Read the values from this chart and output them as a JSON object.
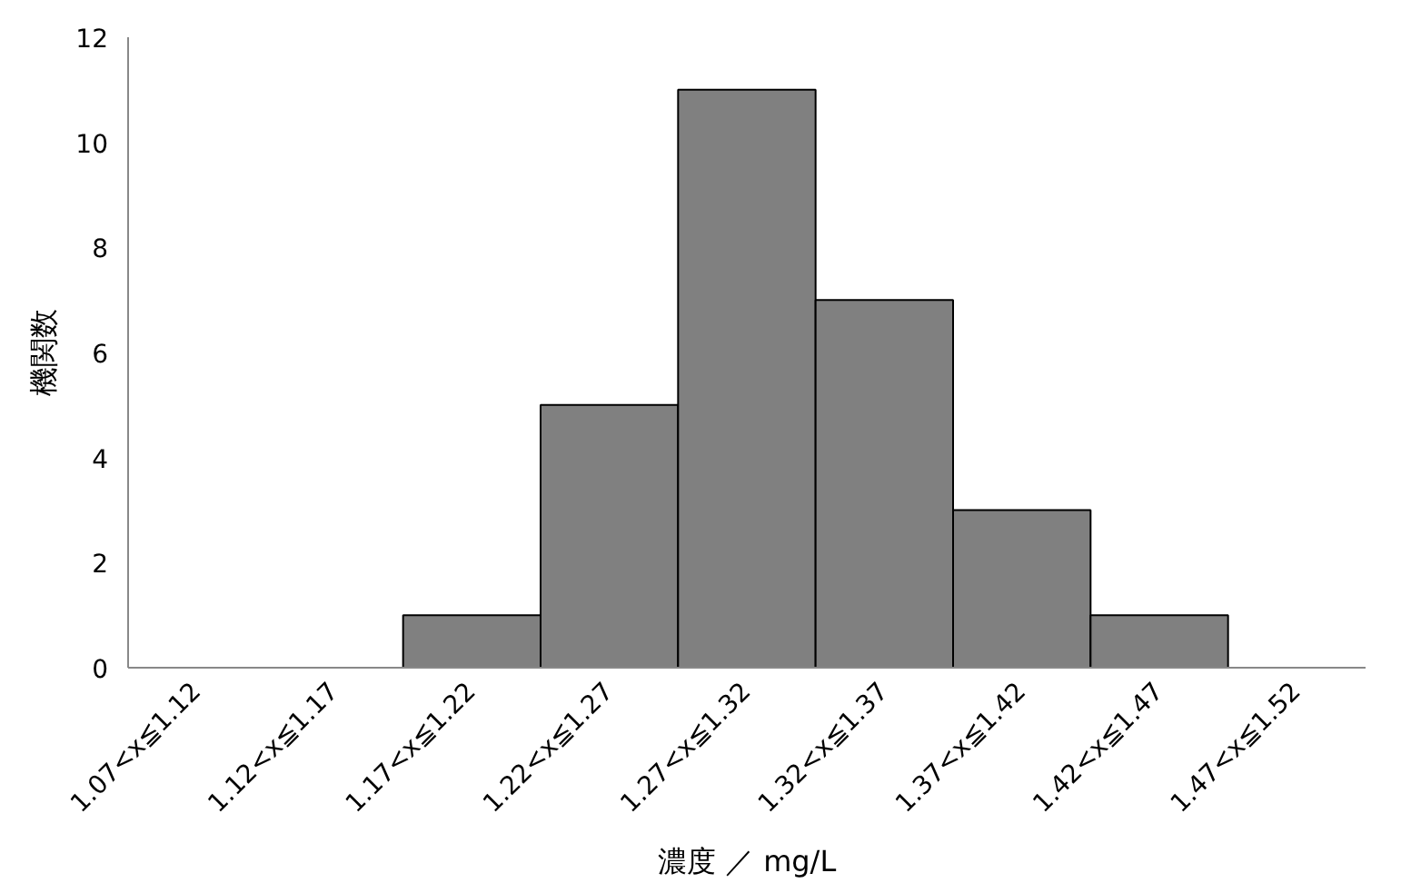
{
  "chart_data": {
    "type": "bar",
    "xlabel": "濃度 ／ mg/L",
    "ylabel": "機関数",
    "categories": [
      "1.07<x≦1.12",
      "1.12<x≦1.17",
      "1.17<x≦1.22",
      "1.22<x≦1.27",
      "1.27<x≦1.32",
      "1.32<x≦1.37",
      "1.37<x≦1.42",
      "1.42<x≦1.47",
      "1.47<x≦1.52"
    ],
    "values": [
      0,
      0,
      1,
      5,
      11,
      7,
      3,
      1,
      0
    ],
    "color": "#808080",
    "ylim": [
      0,
      12
    ],
    "yticks": [
      0,
      2,
      4,
      6,
      8,
      10,
      12
    ],
    "grid": false
  }
}
